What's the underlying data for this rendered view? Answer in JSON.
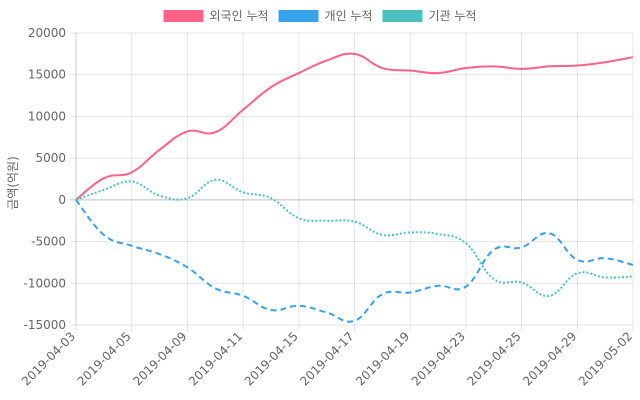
{
  "chart_data": {
    "type": "line",
    "ylabel": "금액(억원)",
    "ylim": [
      -15000,
      20000
    ],
    "yticks": [
      20000,
      15000,
      10000,
      5000,
      0,
      -5000,
      -10000,
      -15000
    ],
    "x": [
      "2019-04-03",
      "2019-04-04",
      "2019-04-05",
      "2019-04-08",
      "2019-04-09",
      "2019-04-10",
      "2019-04-11",
      "2019-04-12",
      "2019-04-15",
      "2019-04-16",
      "2019-04-17",
      "2019-04-18",
      "2019-04-19",
      "2019-04-22",
      "2019-04-23",
      "2019-04-24",
      "2019-04-25",
      "2019-04-26",
      "2019-04-29",
      "2019-04-30",
      "2019-05-02"
    ],
    "xtick_labels": [
      "2019-04-03",
      "2019-04-05",
      "2019-04-09",
      "2019-04-11",
      "2019-04-15",
      "2019-04-17",
      "2019-04-19",
      "2019-04-23",
      "2019-04-25",
      "2019-04-29",
      "2019-05-02"
    ],
    "legend_position": "top",
    "grid": true,
    "series": [
      {
        "name": "외국인 누적",
        "color": "#ff6384",
        "dash": "solid",
        "values": [
          0,
          2600,
          3300,
          6000,
          8200,
          8100,
          10800,
          13500,
          15200,
          16700,
          17500,
          15800,
          15500,
          15200,
          15800,
          16000,
          15700,
          16000,
          16100,
          16500,
          17100
        ]
      },
      {
        "name": "개인 누적",
        "color": "#36a2eb",
        "dash": "dashed",
        "values": [
          0,
          -4200,
          -5500,
          -6500,
          -8100,
          -10600,
          -11500,
          -13200,
          -12700,
          -13500,
          -14500,
          -11300,
          -11100,
          -10300,
          -10400,
          -6000,
          -5700,
          -4000,
          -7200,
          -7000,
          -7800
        ]
      },
      {
        "name": "기관 누적",
        "color": "#4bc0c0",
        "dash": "dotted",
        "values": [
          0,
          1200,
          2200,
          500,
          200,
          2400,
          900,
          200,
          -2200,
          -2500,
          -2600,
          -4200,
          -3900,
          -4100,
          -5200,
          -9500,
          -9900,
          -11500,
          -8800,
          -9300,
          -9200
        ]
      }
    ]
  }
}
